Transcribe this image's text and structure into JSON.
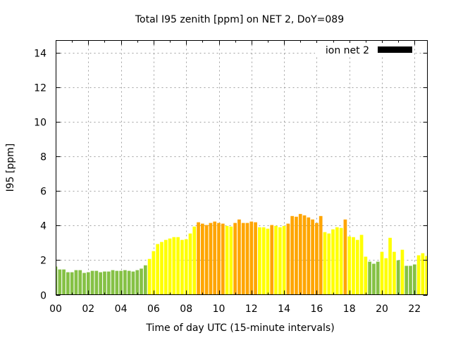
{
  "chart_data": {
    "type": "bar",
    "title": "Total I95 zenith [ppm] on NET 2, DoY=089",
    "xlabel": "Time of day UTC (15-minute intervals)",
    "ylabel": "I95 [ppm]",
    "xlim": [
      0,
      22.75
    ],
    "ylim": [
      0,
      14.7
    ],
    "grid": true,
    "legend_position": "top-right",
    "legend": [
      {
        "label": "ion net 2",
        "color": "#000000"
      }
    ],
    "x_ticks": [
      {
        "value": 0,
        "label": "00"
      },
      {
        "value": 2,
        "label": "02"
      },
      {
        "value": 4,
        "label": "04"
      },
      {
        "value": 6,
        "label": "06"
      },
      {
        "value": 8,
        "label": "08"
      },
      {
        "value": 10,
        "label": "10"
      },
      {
        "value": 12,
        "label": "12"
      },
      {
        "value": 14,
        "label": "14"
      },
      {
        "value": 16,
        "label": "16"
      },
      {
        "value": 18,
        "label": "18"
      },
      {
        "value": 20,
        "label": "20"
      },
      {
        "value": 22,
        "label": "22"
      }
    ],
    "y_ticks": [
      {
        "value": 0,
        "label": "0"
      },
      {
        "value": 2,
        "label": "2"
      },
      {
        "value": 4,
        "label": "4"
      },
      {
        "value": 6,
        "label": "6"
      },
      {
        "value": 8,
        "label": "8"
      },
      {
        "value": 10,
        "label": "10"
      },
      {
        "value": 12,
        "label": "12"
      },
      {
        "value": 14,
        "label": "14"
      }
    ],
    "interval_hours": 0.25,
    "colors": {
      "green": "#85c145",
      "yellow": "#ffff00",
      "orange": "#ffa500"
    },
    "values": [
      1.63,
      1.46,
      1.46,
      1.3,
      1.3,
      1.42,
      1.42,
      1.26,
      1.3,
      1.38,
      1.38,
      1.3,
      1.34,
      1.34,
      1.42,
      1.38,
      1.38,
      1.42,
      1.38,
      1.34,
      1.42,
      1.51,
      1.7,
      2.07,
      2.52,
      2.93,
      3.05,
      3.17,
      3.25,
      3.33,
      3.33,
      3.17,
      3.21,
      3.54,
      3.94,
      4.19,
      4.11,
      4.03,
      4.15,
      4.23,
      4.15,
      4.11,
      3.98,
      3.94,
      4.15,
      4.35,
      4.15,
      4.15,
      4.23,
      4.19,
      3.9,
      3.9,
      3.82,
      4.03,
      3.98,
      3.9,
      3.98,
      4.11,
      4.55,
      4.51,
      4.67,
      4.59,
      4.47,
      4.35,
      4.15,
      4.55,
      3.62,
      3.54,
      3.78,
      3.9,
      3.86,
      4.35,
      3.37,
      3.33,
      3.17,
      3.46,
      2.2,
      1.91,
      1.79,
      1.91,
      2.48,
      2.11,
      3.29,
      2.48,
      1.99,
      2.6,
      1.67,
      1.67,
      1.75,
      2.28,
      2.4,
      2.24
    ],
    "value_colors": [
      "green",
      "green",
      "green",
      "green",
      "green",
      "green",
      "green",
      "green",
      "green",
      "green",
      "green",
      "green",
      "green",
      "green",
      "green",
      "green",
      "green",
      "green",
      "green",
      "green",
      "green",
      "green",
      "green",
      "yellow",
      "yellow",
      "yellow",
      "yellow",
      "yellow",
      "yellow",
      "yellow",
      "yellow",
      "yellow",
      "yellow",
      "yellow",
      "yellow",
      "orange",
      "orange",
      "orange",
      "orange",
      "orange",
      "orange",
      "orange",
      "yellow",
      "yellow",
      "orange",
      "orange",
      "orange",
      "orange",
      "orange",
      "orange",
      "yellow",
      "yellow",
      "yellow",
      "orange",
      "yellow",
      "yellow",
      "yellow",
      "orange",
      "orange",
      "orange",
      "orange",
      "orange",
      "orange",
      "orange",
      "orange",
      "orange",
      "yellow",
      "yellow",
      "yellow",
      "yellow",
      "yellow",
      "orange",
      "yellow",
      "yellow",
      "yellow",
      "yellow",
      "yellow",
      "green",
      "green",
      "green",
      "yellow",
      "yellow",
      "yellow",
      "yellow",
      "green",
      "yellow",
      "green",
      "green",
      "green",
      "yellow",
      "yellow",
      "yellow"
    ]
  }
}
